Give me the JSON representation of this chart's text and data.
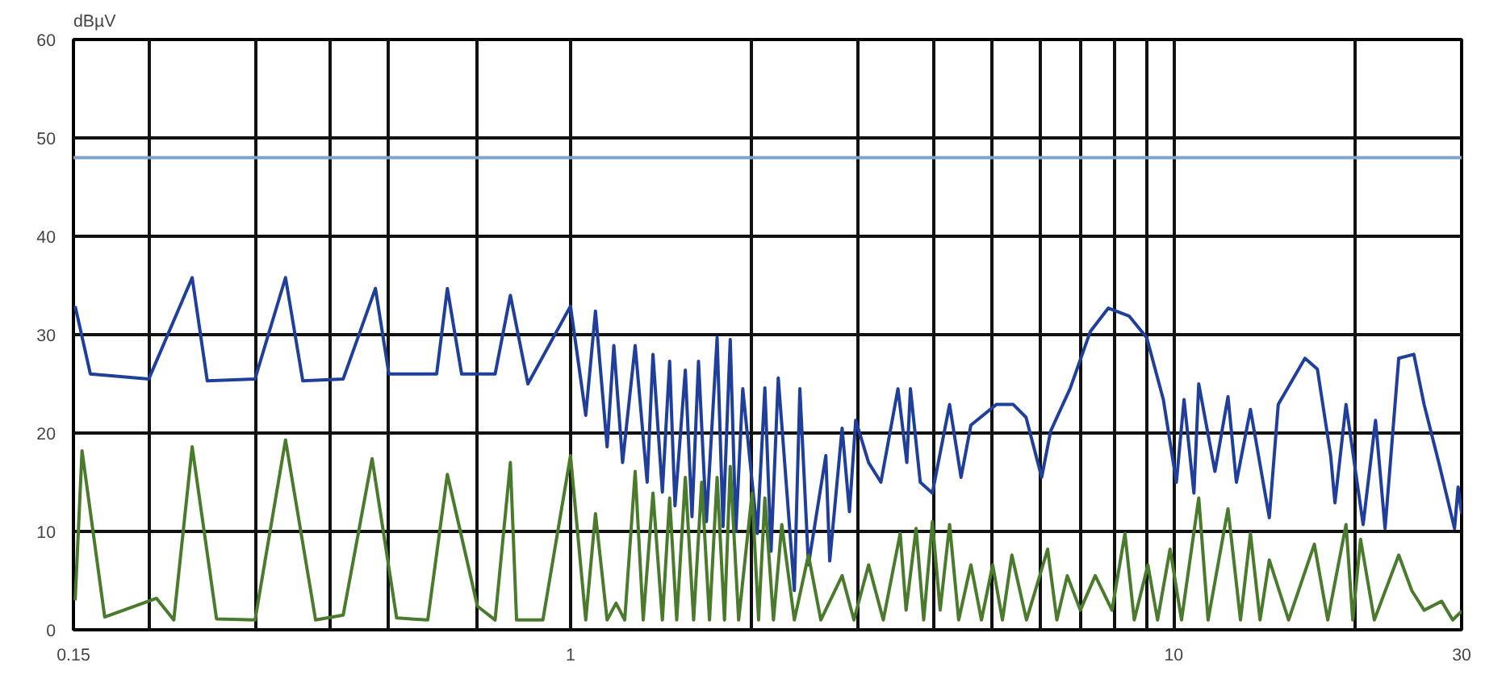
{
  "chart_data": {
    "type": "line",
    "ylabel": "dBµV",
    "xlim": [
      0.15,
      30
    ],
    "ylim": [
      0,
      60
    ],
    "log": "x",
    "grid": true,
    "xticks": [
      0.15,
      {
        "value": 0.2,
        "label": null
      },
      {
        "value": 0.3,
        "label": null
      },
      {
        "value": 0.4,
        "label": null
      },
      {
        "value": 0.5,
        "label": null
      },
      {
        "value": 0.7,
        "label": null
      },
      1,
      {
        "value": 2,
        "label": null
      },
      {
        "value": 3,
        "label": null
      },
      {
        "value": 4,
        "label": null
      },
      {
        "value": 5,
        "label": null
      },
      {
        "value": 6,
        "label": null
      },
      {
        "value": 7,
        "label": null
      },
      {
        "value": 8,
        "label": null
      },
      {
        "value": 9,
        "label": null
      },
      10,
      {
        "value": 20,
        "label": null
      },
      30
    ],
    "yticks": [
      0,
      10,
      20,
      30,
      40,
      50,
      60
    ],
    "ref_lines": [
      {
        "axis": "y",
        "value": 48,
        "color": "#7fa3c8"
      }
    ],
    "series": [
      {
        "color": "#1f3f9a",
        "x": [
          0.151,
          0.16,
          0.2,
          0.236,
          0.25,
          0.3,
          0.337,
          0.36,
          0.42,
          0.475,
          0.5,
          0.6,
          0.625,
          0.66,
          0.75,
          0.795,
          0.85,
          1.0,
          1.06,
          1.1,
          1.15,
          1.18,
          1.22,
          1.28,
          1.34,
          1.37,
          1.42,
          1.46,
          1.49,
          1.55,
          1.59,
          1.63,
          1.68,
          1.75,
          1.79,
          1.84,
          1.88,
          1.93,
          2.04,
          2.1,
          2.15,
          2.21,
          2.35,
          2.4,
          2.48,
          2.65,
          2.69,
          2.82,
          2.9,
          2.97,
          3.12,
          3.27,
          3.49,
          3.61,
          3.66,
          3.8,
          3.98,
          4.25,
          4.44,
          4.61,
          5.08,
          5.42,
          5.69,
          6.04,
          6.25,
          6.73,
          7.27,
          7.79,
          8.43,
          9.02,
          9.61,
          10.1,
          10.4,
          10.8,
          11.0,
          11.7,
          12.3,
          12.7,
          13.4,
          14.4,
          14.9,
          16.5,
          17.3,
          18.2,
          18.5,
          19.3,
          20.6,
          21.6,
          22.4,
          23.6,
          25.0,
          26.0,
          27.6,
          29.2,
          29.6,
          30
        ],
        "values": [
          32.9,
          26,
          25.5,
          35.8,
          25.3,
          25.5,
          35.8,
          25.3,
          25.5,
          34.7,
          26,
          26,
          34.7,
          26,
          26,
          34,
          25,
          32.9,
          21.8,
          32.4,
          18.6,
          28.9,
          17,
          28.9,
          15,
          28,
          14,
          27.3,
          12.6,
          26.4,
          11.5,
          27.3,
          11,
          29.7,
          10.5,
          29.5,
          10,
          24.5,
          9.8,
          24.6,
          8,
          25.6,
          4,
          24.5,
          6.6,
          17.7,
          7,
          20.5,
          12,
          21.3,
          17,
          15,
          24.5,
          17,
          24.5,
          15,
          13.9,
          22.9,
          15.5,
          20.8,
          22.9,
          22.9,
          21.6,
          15.5,
          20.2,
          24.5,
          30.3,
          32.7,
          31.9,
          29.7,
          23.4,
          15,
          23.4,
          13.9,
          25,
          16.1,
          23.7,
          15,
          22.4,
          11.4,
          22.9,
          27.6,
          26.5,
          17.7,
          12.9,
          22.9,
          10.7,
          21.3,
          10.3,
          27.6,
          28,
          22.9,
          16.6,
          10.3,
          14.5,
          11.8
        ]
      },
      {
        "color": "#4a7a2c",
        "x": [
          0.151,
          0.155,
          0.169,
          0.206,
          0.22,
          0.236,
          0.259,
          0.3,
          0.337,
          0.378,
          0.42,
          0.469,
          0.515,
          0.58,
          0.625,
          0.701,
          0.75,
          0.795,
          0.814,
          0.9,
          1.0,
          1.06,
          1.1,
          1.15,
          1.19,
          1.23,
          1.28,
          1.32,
          1.37,
          1.42,
          1.46,
          1.5,
          1.55,
          1.6,
          1.65,
          1.7,
          1.75,
          1.8,
          1.84,
          1.9,
          2.0,
          2.05,
          2.1,
          2.17,
          2.24,
          2.35,
          2.48,
          2.6,
          2.82,
          2.95,
          3.12,
          3.3,
          3.52,
          3.6,
          3.74,
          3.85,
          3.98,
          4.1,
          4.25,
          4.4,
          4.61,
          4.8,
          5.01,
          5.2,
          5.39,
          5.7,
          6.18,
          6.4,
          6.66,
          7.0,
          7.41,
          7.9,
          8.3,
          8.6,
          9.06,
          9.4,
          9.86,
          10.3,
          11.0,
          11.4,
          12.3,
          12.9,
          13.4,
          13.9,
          14.4,
          15.5,
          17.1,
          18,
          19.3,
          19.8,
          20.4,
          21.5,
          23.6,
          24.8,
          26,
          27.8,
          29,
          30
        ],
        "values": [
          3,
          18.2,
          1.3,
          3.2,
          1,
          18.6,
          1.1,
          1,
          19.3,
          1,
          1.5,
          17.4,
          1.2,
          1,
          15.8,
          2.4,
          1,
          17,
          1,
          1,
          17.7,
          1,
          11.8,
          1,
          2.7,
          1,
          16.1,
          1,
          13.9,
          1,
          13.4,
          1,
          15.5,
          1,
          15,
          1,
          15.5,
          1,
          16.6,
          1,
          13.9,
          1,
          13.4,
          1,
          10.7,
          1,
          7.6,
          1,
          5.5,
          1,
          6.6,
          1,
          9.8,
          2,
          10.3,
          1,
          11,
          2,
          10.7,
          1,
          6.6,
          1,
          6.6,
          1,
          7.6,
          1,
          8.2,
          1,
          5.5,
          2,
          5.5,
          2,
          9.8,
          1,
          6.6,
          1,
          8.2,
          1,
          13.4,
          1,
          12.3,
          1,
          9.8,
          1,
          7.1,
          1,
          8.7,
          1,
          10.7,
          1,
          9.2,
          1,
          7.6,
          4,
          2,
          2.9,
          1,
          1.9
        ]
      }
    ]
  }
}
